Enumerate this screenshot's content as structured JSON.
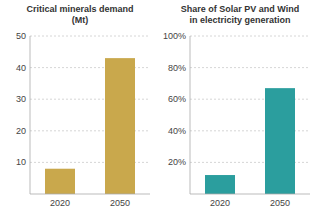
{
  "chart_data": [
    {
      "type": "bar",
      "title": "Critical minerals demand\n(Mt)",
      "categories": [
        "2020",
        "2050"
      ],
      "values": [
        8,
        43
      ],
      "color": "#C9A84C",
      "ylim": [
        0,
        50
      ],
      "yticks": [
        10,
        20,
        30,
        40,
        50
      ],
      "grid": true
    },
    {
      "type": "bar",
      "title": "Share of Solar PV and Wind\nin electricity generation",
      "categories": [
        "2020",
        "2050"
      ],
      "values": [
        12,
        67
      ],
      "color": "#2B9E9E",
      "ylim": [
        0,
        100
      ],
      "yticks": [
        {
          "value": 20,
          "label": "20%"
        },
        {
          "value": 40,
          "label": "40%"
        },
        {
          "value": 60,
          "label": "60%"
        },
        {
          "value": 80,
          "label": "80%"
        },
        {
          "value": 100,
          "label": "100%"
        }
      ],
      "grid": true
    }
  ]
}
